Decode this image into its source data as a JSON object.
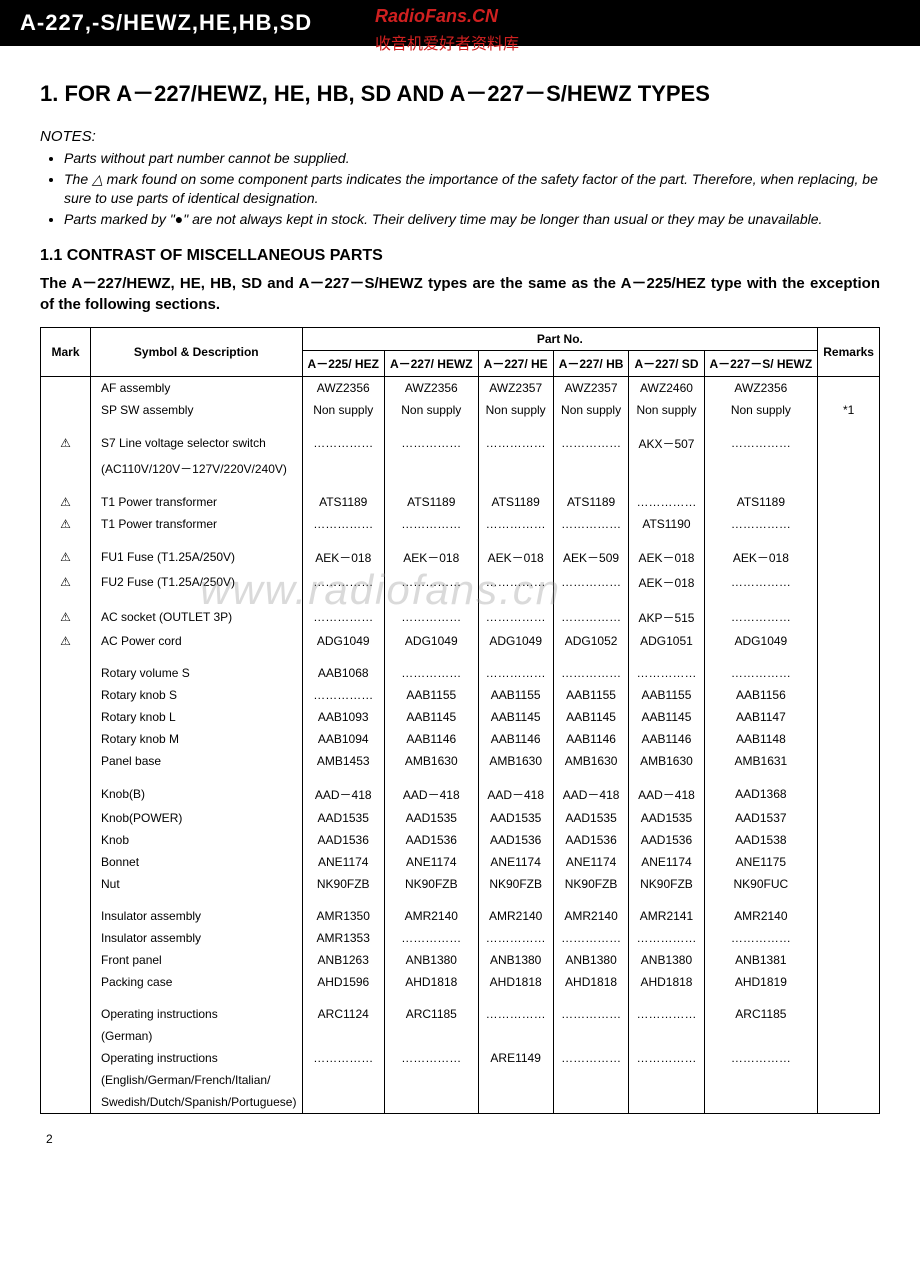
{
  "header": {
    "title": "A-227,-S/HEWZ,HE,HB,SD",
    "watermark_top": "RadioFans.CN",
    "watermark_sub": "收音机爱好者资料库"
  },
  "section": {
    "heading": "1. FOR A－227/HEWZ, HE, HB, SD AND A－227－S/HEWZ TYPES",
    "notes_title": "NOTES:",
    "notes": [
      "Parts without part number cannot be supplied.",
      "The △ mark found on some component parts indicates the importance of the safety factor of the part. Therefore, when replacing, be sure to use parts of identical designation.",
      "Parts marked by \"●\" are not always kept in stock. Their delivery time may be longer than usual or they may be unavailable."
    ],
    "sub_heading": "1.1 CONTRAST OF MISCELLANEOUS PARTS",
    "sub_text": "The A－227/HEWZ, HE, HB, SD and A－227－S/HEWZ types are the same as the A－225/HEZ type with the exception of the following sections."
  },
  "table": {
    "header_group": "Part No.",
    "columns": [
      "Mark",
      "Symbol & Description",
      "A－225/ HEZ",
      "A－227/ HEWZ",
      "A－227/ HE",
      "A－227/ HB",
      "A－227/ SD",
      "A－227－S/ HEWZ",
      "Remarks"
    ],
    "dots": "……………",
    "rows": [
      {
        "mark": "",
        "desc": "AF assembly",
        "c": [
          "AWZ2356",
          "AWZ2356",
          "AWZ2357",
          "AWZ2357",
          "AWZ2460",
          "AWZ2356"
        ],
        "r": ""
      },
      {
        "mark": "",
        "desc": "SP SW assembly",
        "c": [
          "Non supply",
          "Non supply",
          "Non supply",
          "Non supply",
          "Non supply",
          "Non supply"
        ],
        "r": "*1"
      },
      {
        "spacer": true
      },
      {
        "mark": "△",
        "desc": "S7 Line voltage selector switch",
        "c": [
          "dots",
          "dots",
          "dots",
          "dots",
          "AKX－507",
          "dots"
        ],
        "r": ""
      },
      {
        "mark": "",
        "desc": "(AC110V/120V－127V/220V/240V)",
        "c": [
          "",
          "",
          "",
          "",
          "",
          ""
        ],
        "r": ""
      },
      {
        "spacer": true
      },
      {
        "mark": "△",
        "desc": "T1 Power transformer",
        "c": [
          "ATS1189",
          "ATS1189",
          "ATS1189",
          "ATS1189",
          "dots",
          "ATS1189"
        ],
        "r": ""
      },
      {
        "mark": "△",
        "desc": "T1 Power transformer",
        "c": [
          "dots",
          "dots",
          "dots",
          "dots",
          "ATS1190",
          "dots"
        ],
        "r": ""
      },
      {
        "spacer": true
      },
      {
        "mark": "△",
        "desc": "FU1 Fuse (T1.25A/250V)",
        "c": [
          "AEK－018",
          "AEK－018",
          "AEK－018",
          "AEK－509",
          "AEK－018",
          "AEK－018"
        ],
        "r": ""
      },
      {
        "mark": "△",
        "desc": "FU2 Fuse (T1.25A/250V)",
        "c": [
          "dots",
          "dots",
          "dots",
          "dots",
          "AEK－018",
          "dots"
        ],
        "r": ""
      },
      {
        "spacer": true
      },
      {
        "mark": "△",
        "desc": "AC socket (OUTLET 3P)",
        "c": [
          "dots",
          "dots",
          "dots",
          "dots",
          "AKP－515",
          "dots"
        ],
        "r": ""
      },
      {
        "mark": "△",
        "desc": "AC Power cord",
        "c": [
          "ADG1049",
          "ADG1049",
          "ADG1049",
          "ADG1052",
          "ADG1051",
          "ADG1049"
        ],
        "r": ""
      },
      {
        "spacer": true
      },
      {
        "mark": "",
        "desc": "Rotary volume S",
        "c": [
          "AAB1068",
          "dots",
          "dots",
          "dots",
          "dots",
          "dots"
        ],
        "r": ""
      },
      {
        "mark": "",
        "desc": "Rotary knob S",
        "c": [
          "dots",
          "AAB1155",
          "AAB1155",
          "AAB1155",
          "AAB1155",
          "AAB1156"
        ],
        "r": ""
      },
      {
        "mark": "",
        "desc": "Rotary knob L",
        "c": [
          "AAB1093",
          "AAB1145",
          "AAB1145",
          "AAB1145",
          "AAB1145",
          "AAB1147"
        ],
        "r": ""
      },
      {
        "mark": "",
        "desc": "Rotary knob M",
        "c": [
          "AAB1094",
          "AAB1146",
          "AAB1146",
          "AAB1146",
          "AAB1146",
          "AAB1148"
        ],
        "r": ""
      },
      {
        "mark": "",
        "desc": "Panel base",
        "c": [
          "AMB1453",
          "AMB1630",
          "AMB1630",
          "AMB1630",
          "AMB1630",
          "AMB1631"
        ],
        "r": ""
      },
      {
        "spacer": true
      },
      {
        "mark": "",
        "desc": "Knob(B)",
        "c": [
          "AAD－418",
          "AAD－418",
          "AAD－418",
          "AAD－418",
          "AAD－418",
          "AAD1368"
        ],
        "r": ""
      },
      {
        "mark": "",
        "desc": "Knob(POWER)",
        "c": [
          "AAD1535",
          "AAD1535",
          "AAD1535",
          "AAD1535",
          "AAD1535",
          "AAD1537"
        ],
        "r": ""
      },
      {
        "mark": "",
        "desc": "Knob",
        "c": [
          "AAD1536",
          "AAD1536",
          "AAD1536",
          "AAD1536",
          "AAD1536",
          "AAD1538"
        ],
        "r": ""
      },
      {
        "mark": "",
        "desc": "Bonnet",
        "c": [
          "ANE1174",
          "ANE1174",
          "ANE1174",
          "ANE1174",
          "ANE1174",
          "ANE1175"
        ],
        "r": ""
      },
      {
        "mark": "",
        "desc": "Nut",
        "c": [
          "NK90FZB",
          "NK90FZB",
          "NK90FZB",
          "NK90FZB",
          "NK90FZB",
          "NK90FUC"
        ],
        "r": ""
      },
      {
        "spacer": true
      },
      {
        "mark": "",
        "desc": "Insulator assembly",
        "c": [
          "AMR1350",
          "AMR2140",
          "AMR2140",
          "AMR2140",
          "AMR2141",
          "AMR2140"
        ],
        "r": ""
      },
      {
        "mark": "",
        "desc": "Insulator assembly",
        "c": [
          "AMR1353",
          "dots",
          "dots",
          "dots",
          "dots",
          "dots"
        ],
        "r": ""
      },
      {
        "mark": "",
        "desc": "Front panel",
        "c": [
          "ANB1263",
          "ANB1380",
          "ANB1380",
          "ANB1380",
          "ANB1380",
          "ANB1381"
        ],
        "r": ""
      },
      {
        "mark": "",
        "desc": "Packing case",
        "c": [
          "AHD1596",
          "AHD1818",
          "AHD1818",
          "AHD1818",
          "AHD1818",
          "AHD1819"
        ],
        "r": ""
      },
      {
        "spacer": true
      },
      {
        "mark": "",
        "desc": "Operating instructions",
        "c": [
          "ARC1124",
          "ARC1185",
          "dots",
          "dots",
          "dots",
          "ARC1185"
        ],
        "r": ""
      },
      {
        "mark": "",
        "desc": "(German)",
        "c": [
          "",
          "",
          "",
          "",
          "",
          ""
        ],
        "r": ""
      },
      {
        "mark": "",
        "desc": "Operating instructions",
        "c": [
          "dots",
          "dots",
          "ARE1149",
          "dots",
          "dots",
          "dots"
        ],
        "r": ""
      },
      {
        "mark": "",
        "desc": "(English/German/French/Italian/",
        "c": [
          "",
          "",
          "",
          "",
          "",
          ""
        ],
        "r": ""
      },
      {
        "mark": "",
        "desc": "Swedish/Dutch/Spanish/Portuguese)",
        "c": [
          "",
          "",
          "",
          "",
          "",
          ""
        ],
        "r": ""
      }
    ]
  },
  "watermark_center": "www.radiofans.cn",
  "page_number": "2"
}
